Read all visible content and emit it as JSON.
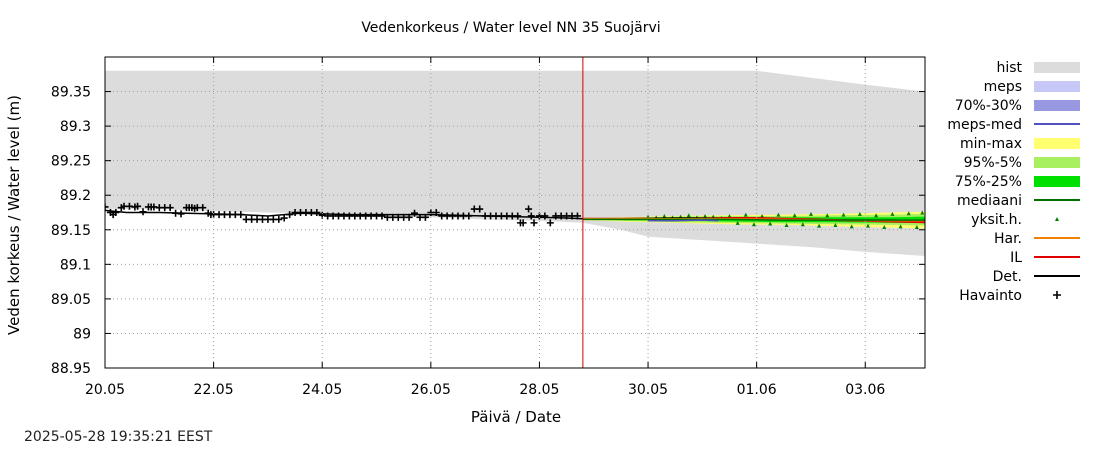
{
  "chart_data": {
    "type": "line",
    "title": "Vedenkorkeus / Water level   NN 35 Suojärvi",
    "xlabel": "Päivä / Date",
    "ylabel": "Veden korkeus / Water level (m)",
    "ylim": [
      88.95,
      89.4
    ],
    "yticks": [
      88.95,
      89.0,
      89.05,
      89.1,
      89.15,
      89.2,
      89.25,
      89.3,
      89.35
    ],
    "ytick_labels": [
      "88.95",
      "89",
      "89.05",
      "89.1",
      "89.15",
      "89.2",
      "89.25",
      "89.3",
      "89.35"
    ],
    "xlim_days": [
      0,
      15.1
    ],
    "xticks_days": [
      0,
      2,
      4,
      6,
      8,
      10,
      12,
      14
    ],
    "xtick_labels": [
      "20.05",
      "22.05",
      "24.05",
      "26.05",
      "28.05",
      "30.05",
      "01.06",
      "03.06"
    ],
    "forecast_start_day": 8.8,
    "hist_band": {
      "x": [
        0,
        1,
        2,
        3,
        4,
        5,
        6,
        7,
        8,
        8.8,
        9.5,
        10,
        11,
        12,
        13,
        14,
        15.1
      ],
      "upper": [
        89.38,
        89.38,
        89.38,
        89.38,
        89.38,
        89.38,
        89.38,
        89.38,
        89.38,
        89.38,
        89.38,
        89.38,
        89.38,
        89.38,
        89.37,
        89.36,
        89.35
      ],
      "lower": [
        89.18,
        89.18,
        89.177,
        89.175,
        89.173,
        89.17,
        89.168,
        89.165,
        89.163,
        89.16,
        89.15,
        89.14,
        89.135,
        89.13,
        89.125,
        89.118,
        89.112
      ]
    },
    "min_max_band": {
      "x": [
        8.8,
        9.5,
        10.5,
        11.5,
        12.5,
        13.5,
        14.5,
        15.1
      ],
      "upper": [
        89.166,
        89.168,
        89.17,
        89.171,
        89.172,
        89.173,
        89.175,
        89.176
      ],
      "lower": [
        89.164,
        89.162,
        89.16,
        89.158,
        89.157,
        89.155,
        89.153,
        89.152
      ]
    },
    "band_95_5": {
      "x": [
        8.8,
        9.5,
        10.5,
        11.5,
        12.5,
        13.5,
        14.5,
        15.1
      ],
      "upper": [
        89.166,
        89.167,
        89.169,
        89.17,
        89.17,
        89.171,
        89.172,
        89.173
      ],
      "lower": [
        89.164,
        89.163,
        89.161,
        89.16,
        89.159,
        89.158,
        89.157,
        89.156
      ]
    },
    "band_75_25": {
      "x": [
        8.8,
        9.5,
        10.5,
        11.5,
        12.5,
        13.5,
        14.5,
        15.1
      ],
      "upper": [
        89.165,
        89.166,
        89.167,
        89.168,
        89.168,
        89.168,
        89.168,
        89.169
      ],
      "lower": [
        89.165,
        89.164,
        89.163,
        89.162,
        89.161,
        89.161,
        89.16,
        89.16
      ]
    },
    "series": [
      {
        "name": "Det.",
        "color": "#000000",
        "x": [
          0,
          0.4,
          1.0,
          1.5,
          2.0,
          2.5,
          3.0,
          3.3,
          3.6,
          4.0,
          4.5,
          5.0,
          5.5,
          6.0,
          6.5,
          7.0,
          7.5,
          8.0,
          8.5,
          8.8,
          9.5,
          10.5,
          11.5,
          12.5,
          13.5,
          14.5,
          15.1
        ],
        "y": [
          89.178,
          89.175,
          89.175,
          89.174,
          89.173,
          89.172,
          89.17,
          89.172,
          89.174,
          89.173,
          89.172,
          89.172,
          89.172,
          89.172,
          89.171,
          89.17,
          89.169,
          89.168,
          89.167,
          89.166,
          89.166,
          89.167,
          89.167,
          89.166,
          89.164,
          89.164,
          89.163
        ]
      },
      {
        "name": "IL",
        "color": "#e00000",
        "x": [
          8.8,
          9.5,
          10.0,
          10.5,
          11.0,
          11.5,
          12.0,
          12.5,
          13.0,
          13.5,
          14.0,
          14.5,
          15.1
        ],
        "y": [
          89.166,
          89.166,
          89.166,
          89.165,
          89.166,
          89.167,
          89.167,
          89.166,
          89.165,
          89.164,
          89.163,
          89.162,
          89.161
        ]
      },
      {
        "name": "Har.",
        "color": "#f08000",
        "x": [
          8.8,
          9.5,
          10.5,
          11.5,
          12.5,
          13.5,
          14.5,
          15.1
        ],
        "y": [
          89.166,
          89.166,
          89.166,
          89.166,
          89.165,
          89.164,
          89.163,
          89.163
        ]
      },
      {
        "name": "mediaani",
        "color": "#007000",
        "x": [
          8.8,
          9.5,
          10.5,
          11.5,
          12.5,
          13.5,
          14.5,
          15.1
        ],
        "y": [
          89.165,
          89.165,
          89.165,
          89.165,
          89.164,
          89.164,
          89.164,
          89.164
        ]
      },
      {
        "name": "meps-med",
        "color": "#5050c0",
        "x": [
          10.0,
          10.5,
          11.0,
          11.3
        ],
        "y": [
          89.163,
          89.163,
          89.164,
          89.163
        ]
      }
    ],
    "observations": {
      "name": "Havainto",
      "x": [
        0,
        0.1,
        0.15,
        0.2,
        0.3,
        0.35,
        0.45,
        0.55,
        0.6,
        0.7,
        0.8,
        0.85,
        0.9,
        1.0,
        1.1,
        1.2,
        1.3,
        1.4,
        1.5,
        1.55,
        1.6,
        1.65,
        1.7,
        1.8,
        1.9,
        1.95,
        2.0,
        2.1,
        2.2,
        2.3,
        2.4,
        2.5,
        2.6,
        2.7,
        2.8,
        2.9,
        3.0,
        3.1,
        3.2,
        3.3,
        3.4,
        3.5,
        3.6,
        3.7,
        3.8,
        3.9,
        4.0,
        4.1,
        4.2,
        4.3,
        4.4,
        4.5,
        4.6,
        4.7,
        4.8,
        4.9,
        5.0,
        5.1,
        5.2,
        5.3,
        5.4,
        5.5,
        5.6,
        5.7,
        5.8,
        5.9,
        6.0,
        6.1,
        6.2,
        6.3,
        6.4,
        6.5,
        6.6,
        6.7,
        6.8,
        6.9,
        7.0,
        7.1,
        7.2,
        7.3,
        7.4,
        7.5,
        7.6,
        7.65,
        7.7,
        7.8,
        7.85,
        7.9,
        8.0,
        8.1,
        8.2,
        8.3,
        8.4,
        8.5,
        8.6,
        8.7
      ],
      "y": [
        89.183,
        89.175,
        89.172,
        89.175,
        89.182,
        89.184,
        89.184,
        89.183,
        89.184,
        89.176,
        89.183,
        89.183,
        89.183,
        89.182,
        89.182,
        89.182,
        89.174,
        89.173,
        89.182,
        89.182,
        89.182,
        89.181,
        89.182,
        89.182,
        89.174,
        89.172,
        89.172,
        89.172,
        89.172,
        89.172,
        89.172,
        89.172,
        89.165,
        89.165,
        89.165,
        89.165,
        89.165,
        89.165,
        89.165,
        89.167,
        89.172,
        89.175,
        89.175,
        89.175,
        89.175,
        89.175,
        89.171,
        89.17,
        89.17,
        89.17,
        89.17,
        89.17,
        89.17,
        89.17,
        89.17,
        89.17,
        89.17,
        89.17,
        89.168,
        89.168,
        89.168,
        89.168,
        89.168,
        89.174,
        89.168,
        89.168,
        89.175,
        89.175,
        89.17,
        89.17,
        89.17,
        89.17,
        89.17,
        89.17,
        89.18,
        89.18,
        89.17,
        89.17,
        89.17,
        89.17,
        89.17,
        89.17,
        89.17,
        89.16,
        89.16,
        89.18,
        89.17,
        89.16,
        89.17,
        89.17,
        89.16,
        89.17,
        89.17,
        89.17,
        89.17,
        89.17
      ]
    },
    "single_members": {
      "name": "yksit.h.",
      "x": [
        10.0,
        10.15,
        10.3,
        10.45,
        10.6,
        10.75,
        10.9,
        11.05,
        11.2,
        11.35,
        11.5,
        11.65,
        11.8,
        11.95,
        12.1,
        12.25,
        12.4,
        12.55,
        12.7,
        12.85,
        13.0,
        13.15,
        13.3,
        13.45,
        13.6,
        13.75,
        13.9,
        14.05,
        14.2,
        14.35,
        14.5,
        14.65,
        14.8,
        14.95,
        15.05
      ],
      "y": [
        89.169,
        89.168,
        89.17,
        89.168,
        89.169,
        89.171,
        89.168,
        89.17,
        89.169,
        89.167,
        89.17,
        89.16,
        89.172,
        89.158,
        89.17,
        89.159,
        89.172,
        89.157,
        89.171,
        89.158,
        89.173,
        89.156,
        89.171,
        89.157,
        89.172,
        89.155,
        89.173,
        89.156,
        89.171,
        89.154,
        89.173,
        89.155,
        89.174,
        89.154,
        89.175
      ]
    },
    "legend": {
      "placement": "right",
      "items": [
        {
          "label": "hist",
          "kind": "band",
          "color": "#dcdcdc"
        },
        {
          "label": "meps",
          "kind": "band",
          "color": "#c8c8f8"
        },
        {
          "label": "70%-30%",
          "kind": "band",
          "color": "#9898e0"
        },
        {
          "label": "meps-med",
          "kind": "line",
          "color": "#5050c0"
        },
        {
          "label": "min-max",
          "kind": "band",
          "color": "#ffff70"
        },
        {
          "label": "95%-5%",
          "kind": "band",
          "color": "#a8f060"
        },
        {
          "label": "75%-25%",
          "kind": "band",
          "color": "#00e000"
        },
        {
          "label": "mediaani",
          "kind": "line",
          "color": "#007000"
        },
        {
          "label": "yksit.h.",
          "kind": "dot",
          "color": "#008000"
        },
        {
          "label": "Har.",
          "kind": "line",
          "color": "#f08000"
        },
        {
          "label": "IL",
          "kind": "line",
          "color": "#e00000"
        },
        {
          "label": "Det.",
          "kind": "line",
          "color": "#000000"
        },
        {
          "label": "Havainto",
          "kind": "plus",
          "color": "#000000"
        }
      ]
    }
  },
  "timestamp": "2025-05-28 19:35:21 EEST"
}
